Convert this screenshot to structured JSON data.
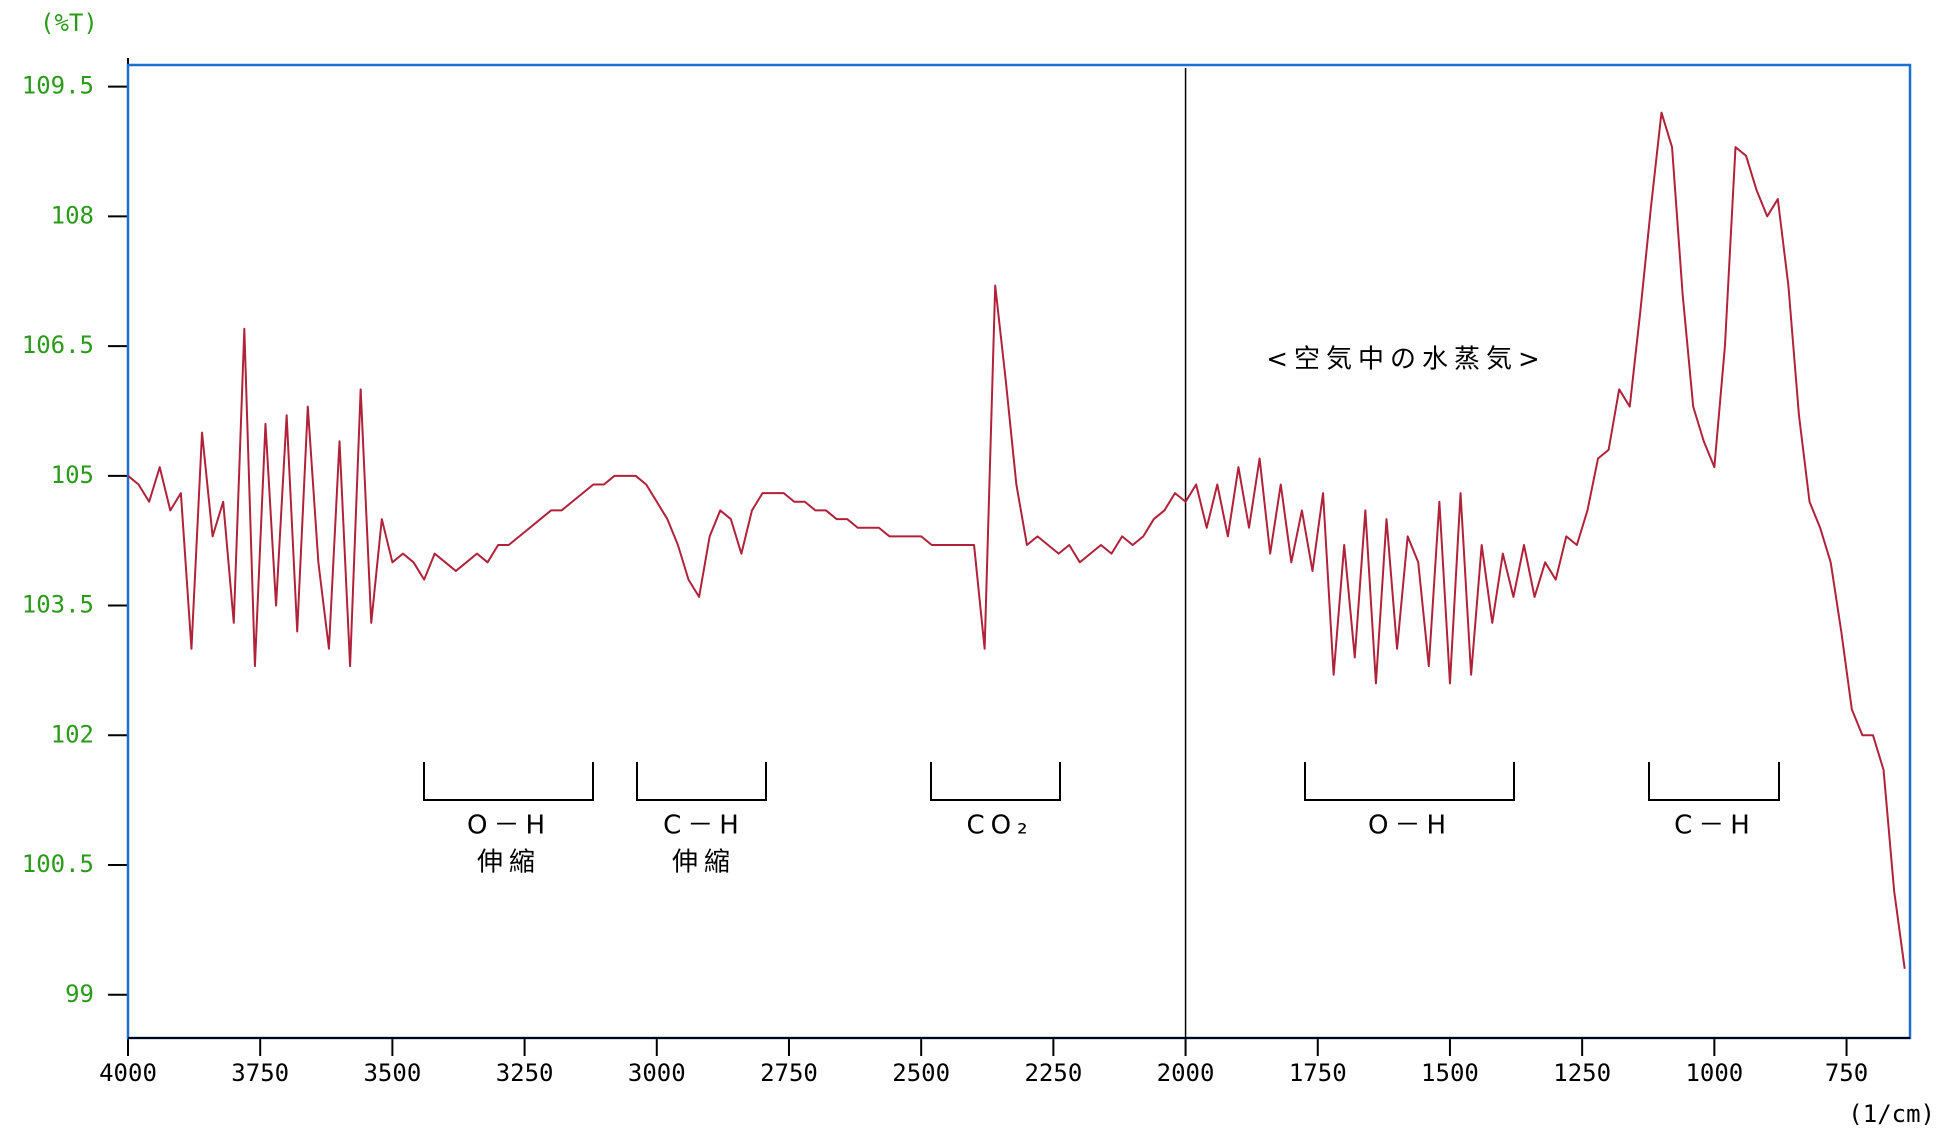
{
  "chart_data": {
    "type": "line",
    "y_label": "(%T)",
    "x_label": "(1/cm)",
    "xlim": [
      4000,
      630
    ],
    "ylim": [
      98.5,
      109.75
    ],
    "xticks": [
      4000,
      3750,
      3500,
      3250,
      3000,
      2750,
      2500,
      2250,
      2000,
      1750,
      1500,
      1250,
      1000,
      750
    ],
    "yticks": [
      99,
      100.5,
      102,
      103.5,
      105,
      106.5,
      108,
      109.5
    ],
    "vlines": [
      2000
    ],
    "annotations": [
      {
        "lines": [
          "O－H",
          "伸縮"
        ]
      },
      {
        "lines": [
          "C－H",
          "伸縮"
        ]
      },
      {
        "lines": [
          "CO₂"
        ]
      },
      {
        "lines": [
          "O－H"
        ]
      },
      {
        "lines": [
          "C－H"
        ]
      }
    ],
    "region_label": "<空気中の水蒸気>",
    "series": [
      {
        "color": "#b0223a",
        "x": [
          4000,
          3980,
          3960,
          3940,
          3920,
          3900,
          3880,
          3860,
          3840,
          3820,
          3800,
          3780,
          3760,
          3740,
          3720,
          3700,
          3680,
          3660,
          3640,
          3620,
          3600,
          3580,
          3560,
          3540,
          3520,
          3500,
          3480,
          3460,
          3440,
          3420,
          3400,
          3380,
          3360,
          3340,
          3320,
          3300,
          3280,
          3260,
          3240,
          3220,
          3200,
          3180,
          3160,
          3140,
          3120,
          3100,
          3080,
          3060,
          3040,
          3020,
          3000,
          2980,
          2960,
          2940,
          2920,
          2900,
          2880,
          2860,
          2840,
          2820,
          2800,
          2780,
          2760,
          2740,
          2720,
          2700,
          2680,
          2660,
          2640,
          2620,
          2600,
          2580,
          2560,
          2540,
          2520,
          2500,
          2480,
          2460,
          2440,
          2420,
          2400,
          2380,
          2360,
          2340,
          2320,
          2300,
          2280,
          2260,
          2240,
          2220,
          2200,
          2180,
          2160,
          2140,
          2120,
          2100,
          2080,
          2060,
          2040,
          2020,
          2000,
          1980,
          1960,
          1940,
          1920,
          1900,
          1880,
          1860,
          1840,
          1820,
          1800,
          1780,
          1760,
          1740,
          1720,
          1700,
          1680,
          1660,
          1640,
          1620,
          1600,
          1580,
          1560,
          1540,
          1520,
          1500,
          1480,
          1460,
          1440,
          1420,
          1400,
          1380,
          1360,
          1340,
          1320,
          1300,
          1280,
          1260,
          1240,
          1220,
          1200,
          1180,
          1160,
          1140,
          1120,
          1100,
          1080,
          1060,
          1040,
          1020,
          1000,
          980,
          960,
          940,
          920,
          900,
          880,
          860,
          840,
          820,
          800,
          780,
          760,
          740,
          720,
          700,
          680,
          660,
          640
        ],
        "values": [
          105.0,
          104.9,
          104.7,
          105.1,
          104.6,
          104.8,
          103.0,
          105.5,
          104.3,
          104.7,
          103.3,
          106.7,
          102.8,
          105.6,
          103.5,
          105.7,
          103.2,
          105.8,
          104.0,
          103.0,
          105.4,
          102.8,
          106.0,
          103.3,
          104.5,
          104.0,
          104.1,
          104.0,
          103.8,
          104.1,
          104.0,
          103.9,
          104.0,
          104.1,
          104.0,
          104.2,
          104.2,
          104.3,
          104.4,
          104.5,
          104.6,
          104.6,
          104.7,
          104.8,
          104.9,
          104.9,
          105.0,
          105.0,
          105.0,
          104.9,
          104.7,
          104.5,
          104.2,
          103.8,
          103.6,
          104.3,
          104.6,
          104.5,
          104.1,
          104.6,
          104.8,
          104.8,
          104.8,
          104.7,
          104.7,
          104.6,
          104.6,
          104.5,
          104.5,
          104.4,
          104.4,
          104.4,
          104.3,
          104.3,
          104.3,
          104.3,
          104.2,
          104.2,
          104.2,
          104.2,
          104.2,
          103.0,
          107.2,
          106.1,
          104.9,
          104.2,
          104.3,
          104.2,
          104.1,
          104.2,
          104.0,
          104.1,
          104.2,
          104.1,
          104.3,
          104.2,
          104.3,
          104.5,
          104.6,
          104.8,
          104.7,
          104.9,
          104.4,
          104.9,
          104.3,
          105.1,
          104.4,
          105.2,
          104.1,
          104.9,
          104.0,
          104.6,
          103.9,
          104.8,
          102.7,
          104.2,
          102.9,
          104.6,
          102.6,
          104.5,
          103.0,
          104.3,
          104.0,
          102.8,
          104.7,
          102.6,
          104.8,
          102.7,
          104.2,
          103.3,
          104.1,
          103.6,
          104.2,
          103.6,
          104.0,
          103.8,
          104.3,
          104.2,
          104.6,
          105.2,
          105.3,
          106.0,
          105.8,
          106.9,
          108.1,
          109.2,
          108.8,
          107.1,
          105.8,
          105.4,
          105.1,
          106.5,
          108.8,
          108.7,
          108.3,
          108.0,
          108.2,
          107.2,
          105.7,
          104.7,
          104.4,
          104.0,
          103.2,
          102.3,
          102.0,
          102.0,
          101.6,
          100.2,
          99.3
        ]
      }
    ]
  }
}
